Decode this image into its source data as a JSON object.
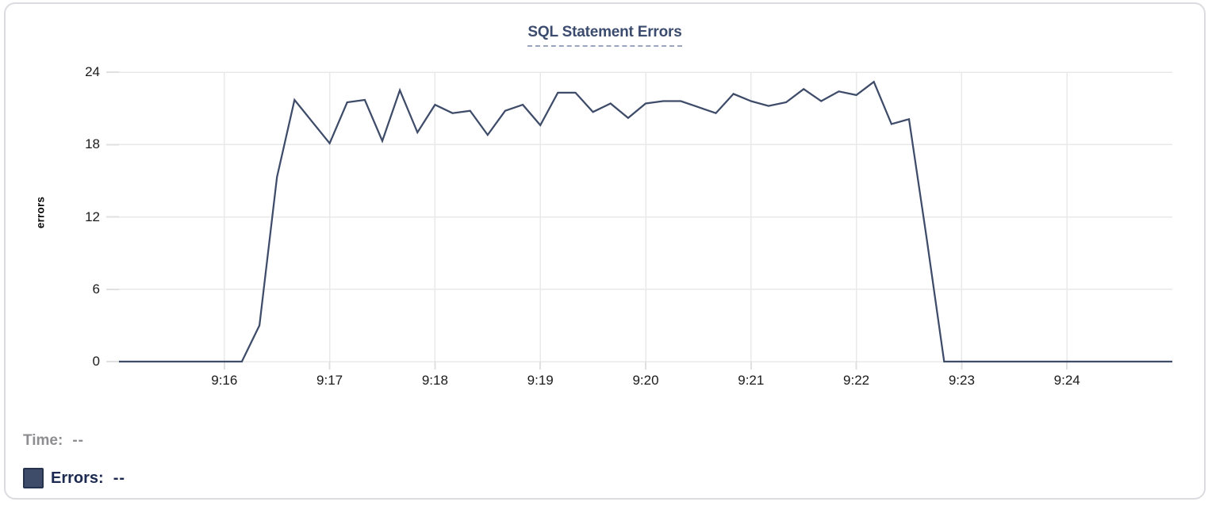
{
  "chart": {
    "title": "SQL Statement Errors",
    "title_color": "#3c4c6e",
    "title_underline_color": "#9aa6c0",
    "y_axis_label": "errors",
    "line_color": "#3e4c69",
    "grid_color": "#e9e9e9",
    "tick_color": "#e0e0e0",
    "axis_text_color": "#1a1a1a"
  },
  "tooltip_readout": {
    "time_label": "Time:",
    "time_value": "--",
    "time_color": "#8d8d92",
    "errors_label": "Errors:",
    "errors_value": "--",
    "errors_color": "#1c2950",
    "swatch_fill": "#3e4c69",
    "swatch_border": "#27334e"
  },
  "chart_data": {
    "type": "line",
    "title": "SQL Statement Errors",
    "xlabel": "",
    "ylabel": "errors",
    "grid": true,
    "legend_position": "none",
    "ylim": [
      0,
      24
    ],
    "y_ticks": [
      0,
      6,
      12,
      18,
      24
    ],
    "x_tick_labels": [
      "9:16",
      "9:17",
      "9:18",
      "9:19",
      "9:20",
      "9:21",
      "9:22",
      "9:23",
      "9:24"
    ],
    "x": [
      "9:15:00",
      "9:15:10",
      "9:15:20",
      "9:15:30",
      "9:15:40",
      "9:15:50",
      "9:16:00",
      "9:16:10",
      "9:16:20",
      "9:16:30",
      "9:16:40",
      "9:16:50",
      "9:17:00",
      "9:17:10",
      "9:17:20",
      "9:17:30",
      "9:17:40",
      "9:17:50",
      "9:18:00",
      "9:18:10",
      "9:18:20",
      "9:18:30",
      "9:18:40",
      "9:18:50",
      "9:19:00",
      "9:19:10",
      "9:19:20",
      "9:19:30",
      "9:19:40",
      "9:19:50",
      "9:20:00",
      "9:20:10",
      "9:20:20",
      "9:20:30",
      "9:20:40",
      "9:20:50",
      "9:21:00",
      "9:21:10",
      "9:21:20",
      "9:21:30",
      "9:21:40",
      "9:21:50",
      "9:22:00",
      "9:22:10",
      "9:22:20",
      "9:22:30",
      "9:22:40",
      "9:22:50",
      "9:23:00",
      "9:23:10",
      "9:23:20",
      "9:23:30",
      "9:23:40",
      "9:23:50",
      "9:24:00",
      "9:24:10",
      "9:24:20",
      "9:24:30",
      "9:24:40",
      "9:24:50",
      "9:25:00"
    ],
    "series": [
      {
        "name": "Errors",
        "color": "#3e4c69",
        "values": [
          0,
          0,
          0,
          0,
          0,
          0,
          0,
          0,
          3,
          15.3,
          21.7,
          19.9,
          18.1,
          21.5,
          21.7,
          18.3,
          22.5,
          19,
          21.3,
          20.6,
          20.8,
          18.8,
          20.8,
          21.3,
          19.6,
          22.3,
          22.3,
          20.7,
          21.4,
          20.2,
          21.4,
          21.6,
          21.6,
          21.1,
          20.6,
          22.2,
          21.6,
          21.2,
          21.5,
          22.6,
          21.6,
          22.4,
          22.1,
          23.2,
          19.7,
          20.1,
          10.3,
          0,
          0,
          0,
          0,
          0,
          0,
          0,
          0,
          0,
          0,
          0,
          0,
          0,
          0
        ]
      }
    ]
  }
}
